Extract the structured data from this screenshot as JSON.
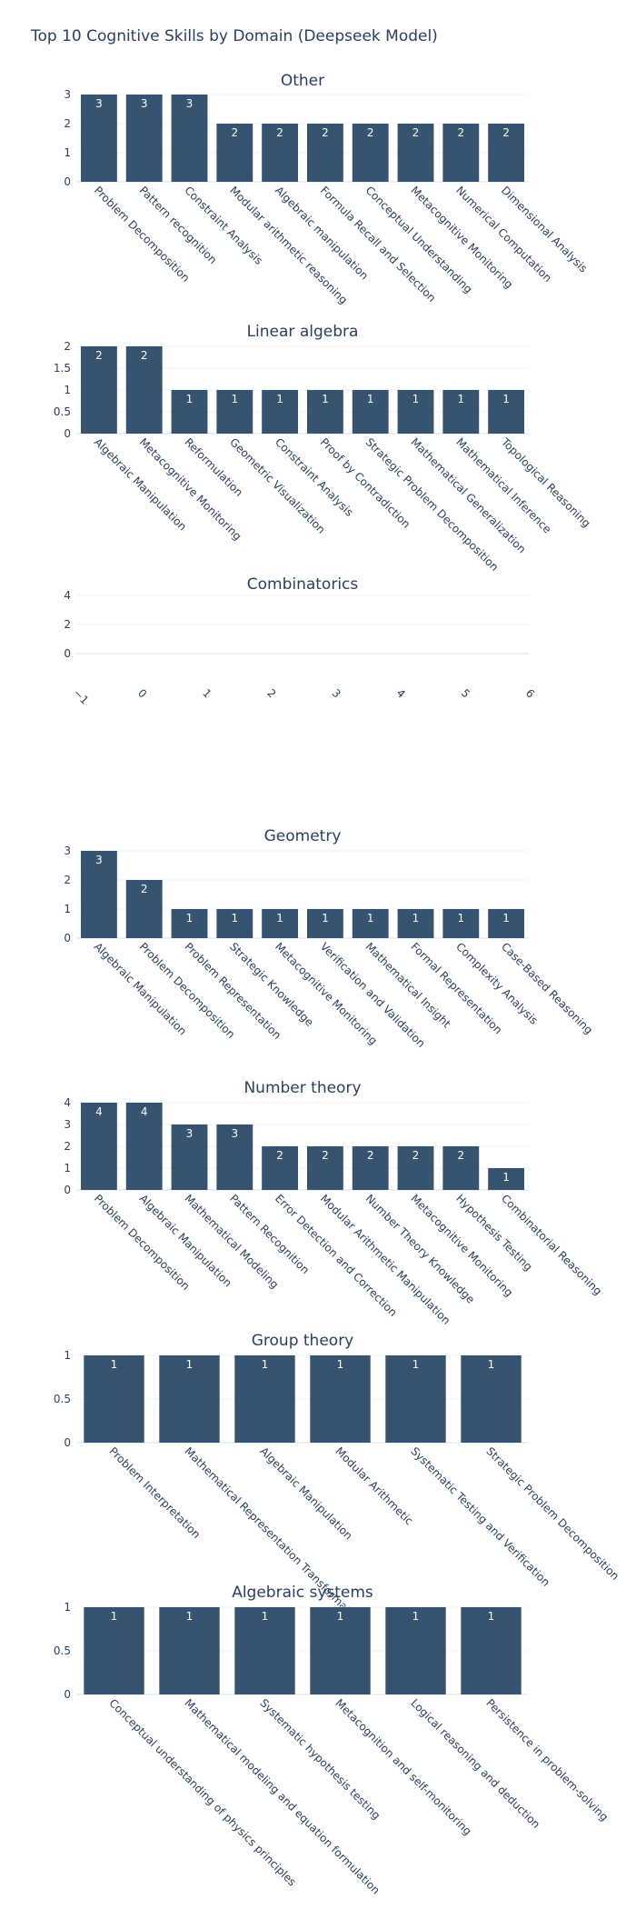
{
  "title": "Top 10 Cognitive Skills by Domain (Deepseek Model)",
  "colors": {
    "bar": "#36536f",
    "text": "#2a3f5f",
    "grid": "#ebf0f8",
    "bar_label": "#ffffff"
  },
  "chart_data": [
    {
      "type": "bar",
      "title": "Other",
      "categories": [
        "Problem Decomposition",
        "Pattern recognition",
        "Constraint Analysis",
        "Modular arithmetic reasoning",
        "Algebraic manipulation",
        "Formula Recall and Selection",
        "Conceptual Understanding",
        "Metacognitive Monitoring",
        "Numerical Computation",
        "Dimensional Analysis"
      ],
      "values": [
        3,
        3,
        3,
        2,
        2,
        2,
        2,
        2,
        2,
        2
      ],
      "yticks": [
        "0",
        "1",
        "2",
        "3"
      ],
      "ylim": [
        0,
        3
      ],
      "grid": true
    },
    {
      "type": "bar",
      "title": "Linear algebra",
      "categories": [
        "Algebraic Manipulation",
        "Metacognitive Monitoring",
        "Reformulation",
        "Geometric Visualization",
        "Constraint Analysis",
        "Proof by Contradiction",
        "Strategic Problem Decomposition",
        "Mathematical Generalization",
        "Mathematical Inference",
        "Topological Reasoning"
      ],
      "values": [
        2,
        2,
        1,
        1,
        1,
        1,
        1,
        1,
        1,
        1
      ],
      "yticks": [
        "0",
        "0.5",
        "1",
        "1.5",
        "2"
      ],
      "ylim": [
        0,
        2
      ],
      "grid": true
    },
    {
      "type": "bar",
      "title": "Combinatorics",
      "categories": [],
      "values": [],
      "xticks": [
        "−1",
        "0",
        "1",
        "2",
        "3",
        "4",
        "5",
        "6"
      ],
      "yticks": [
        "0",
        "2",
        "4"
      ],
      "xlim": [
        -1,
        6
      ],
      "ylim": [
        -1,
        4
      ],
      "grid": true
    },
    {
      "type": "bar",
      "title": "Geometry",
      "categories": [
        "Algebraic Manipulation",
        "Problem Decomposition",
        "Problem Representation",
        "Strategic Knowledge",
        "Metacognitive Monitoring",
        "Verification and Validation",
        "Mathematical Insight",
        "Formal Representation",
        "Complexity Analysis",
        "Case-Based Reasoning"
      ],
      "values": [
        3,
        2,
        1,
        1,
        1,
        1,
        1,
        1,
        1,
        1
      ],
      "yticks": [
        "0",
        "1",
        "2",
        "3"
      ],
      "ylim": [
        0,
        3
      ],
      "grid": true
    },
    {
      "type": "bar",
      "title": "Number theory",
      "categories": [
        "Problem Decomposition",
        "Algebraic Manipulation",
        "Mathematical Modeling",
        "Pattern Recognition",
        "Error Detection and Correction",
        "Modular Arithmetic Manipulation",
        "Number Theory Knowledge",
        "Metacognitive Monitoring",
        "Hypothesis Testing",
        "Combinatorial Reasoning"
      ],
      "values": [
        4,
        4,
        3,
        3,
        2,
        2,
        2,
        2,
        2,
        1
      ],
      "yticks": [
        "0",
        "1",
        "2",
        "3",
        "4"
      ],
      "ylim": [
        0,
        4
      ],
      "grid": true
    },
    {
      "type": "bar",
      "title": "Group theory",
      "categories": [
        "Problem Interpretation",
        "Mathematical Representation Transformation",
        "Algebraic Manipulation",
        "Modular Arithmetic",
        "Systematic Testing and Verification",
        "Strategic Problem Decomposition"
      ],
      "values": [
        1,
        1,
        1,
        1,
        1,
        1
      ],
      "yticks": [
        "0",
        "0.5",
        "1"
      ],
      "ylim": [
        0,
        1
      ],
      "grid": true
    },
    {
      "type": "bar",
      "title": "Algebraic systems",
      "categories": [
        "Conceptual understanding of physics principles",
        "Mathematical modeling and equation formulation",
        "Systematic hypothesis testing",
        "Metacognition and self-monitoring",
        "Logical reasoning and deduction",
        "Persistence in problem-solving"
      ],
      "values": [
        1,
        1,
        1,
        1,
        1,
        1
      ],
      "yticks": [
        "0",
        "0.5",
        "1"
      ],
      "ylim": [
        0,
        1
      ],
      "grid": true
    }
  ]
}
